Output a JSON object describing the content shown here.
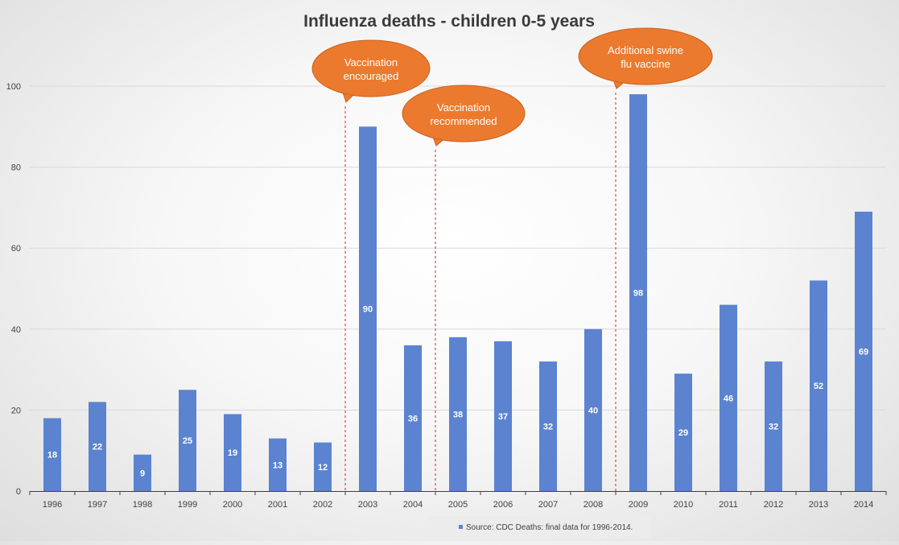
{
  "chart_data": {
    "type": "bar",
    "title": "Influenza deaths - children 0-5 years",
    "categories": [
      "1996",
      "1997",
      "1998",
      "1999",
      "2000",
      "2001",
      "2002",
      "2003",
      "2004",
      "2005",
      "2006",
      "2007",
      "2008",
      "2009",
      "2010",
      "2011",
      "2012",
      "2013",
      "2014"
    ],
    "series": [
      {
        "name": "Source: CDC Deaths: final data for 1996-2014.",
        "values": [
          18,
          22,
          9,
          25,
          19,
          13,
          12,
          90,
          36,
          38,
          37,
          32,
          40,
          98,
          29,
          46,
          32,
          52,
          69
        ],
        "color": "#5b83d0"
      }
    ],
    "ylim": [
      0,
      100
    ],
    "yticks": [
      0,
      20,
      40,
      60,
      80,
      100
    ],
    "grid": true,
    "data_labels": true,
    "legend_position": "bottom",
    "annotations": [
      {
        "text": [
          "Vaccination",
          "encouraged"
        ],
        "between": [
          "2002",
          "2003"
        ]
      },
      {
        "text": [
          "Vaccination",
          "recommended"
        ],
        "between": [
          "2004",
          "2005"
        ]
      },
      {
        "text": [
          "Additional swine",
          "flu vaccine"
        ],
        "between": [
          "2008",
          "2009"
        ]
      }
    ],
    "annotation_color": "#ec7a2e",
    "marker_line_color": "#e02020"
  }
}
